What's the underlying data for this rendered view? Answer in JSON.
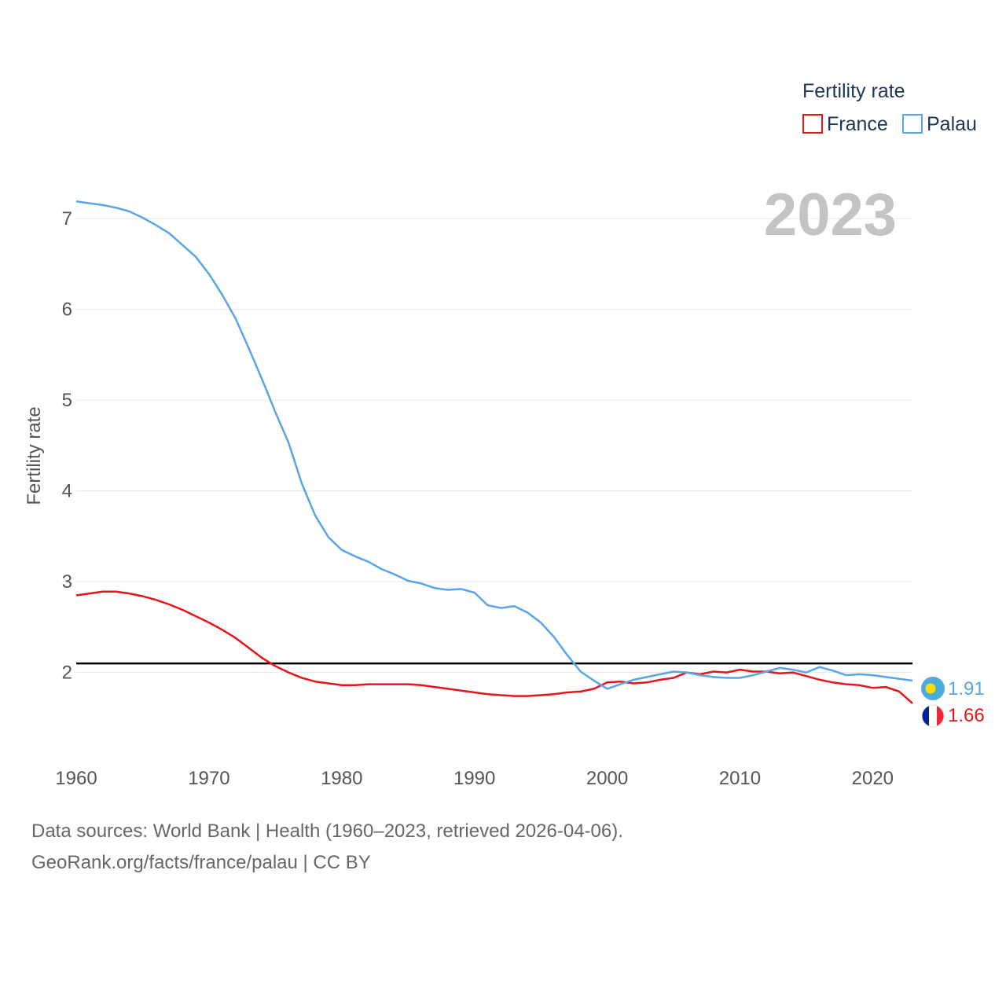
{
  "chart_data": {
    "type": "line",
    "title": "",
    "xlabel": "",
    "ylabel": "Fertility rate",
    "xlim": [
      1960,
      2023
    ],
    "ylim": [
      1.2,
      7.4
    ],
    "x_ticks": [
      "1960",
      "1970",
      "1980",
      "1990",
      "2000",
      "2010",
      "2020"
    ],
    "y_ticks": [
      "2",
      "3",
      "4",
      "5",
      "6",
      "7"
    ],
    "grid": true,
    "year_label": "2023",
    "reference_line": {
      "value": 2.1,
      "label": ""
    },
    "legend": {
      "title": "Fertility rate",
      "position": "top-right"
    },
    "x": [
      1960,
      1961,
      1962,
      1963,
      1964,
      1965,
      1966,
      1967,
      1968,
      1969,
      1970,
      1971,
      1972,
      1973,
      1974,
      1975,
      1976,
      1977,
      1978,
      1979,
      1980,
      1981,
      1982,
      1983,
      1984,
      1985,
      1986,
      1987,
      1988,
      1989,
      1990,
      1991,
      1992,
      1993,
      1994,
      1995,
      1996,
      1997,
      1998,
      1999,
      2000,
      2001,
      2002,
      2003,
      2004,
      2005,
      2006,
      2007,
      2008,
      2009,
      2010,
      2011,
      2012,
      2013,
      2014,
      2015,
      2016,
      2017,
      2018,
      2019,
      2020,
      2021,
      2022,
      2023
    ],
    "series": [
      {
        "name": "France",
        "color": "#e8141b",
        "end_label": "1.66",
        "values": [
          2.85,
          2.87,
          2.89,
          2.89,
          2.87,
          2.84,
          2.8,
          2.75,
          2.69,
          2.62,
          2.55,
          2.47,
          2.38,
          2.27,
          2.16,
          2.07,
          2.0,
          1.94,
          1.9,
          1.88,
          1.86,
          1.86,
          1.87,
          1.87,
          1.87,
          1.87,
          1.86,
          1.84,
          1.82,
          1.8,
          1.78,
          1.76,
          1.75,
          1.74,
          1.74,
          1.75,
          1.76,
          1.78,
          1.79,
          1.82,
          1.89,
          1.9,
          1.88,
          1.89,
          1.92,
          1.94,
          2.0,
          1.98,
          2.01,
          2.0,
          2.03,
          2.01,
          2.01,
          1.99,
          2.0,
          1.96,
          1.92,
          1.89,
          1.87,
          1.86,
          1.83,
          1.84,
          1.79,
          1.66
        ]
      },
      {
        "name": "Palau",
        "color": "#5aa4e8",
        "end_label": "1.91",
        "values": [
          7.19,
          7.17,
          7.15,
          7.12,
          7.08,
          7.01,
          6.93,
          6.84,
          6.71,
          6.58,
          6.39,
          6.16,
          5.9,
          5.57,
          5.23,
          4.87,
          4.53,
          4.08,
          3.73,
          3.49,
          3.35,
          3.28,
          3.22,
          3.14,
          3.08,
          3.01,
          2.98,
          2.93,
          2.91,
          2.92,
          2.88,
          2.74,
          2.71,
          2.73,
          2.66,
          2.55,
          2.39,
          2.19,
          2.01,
          1.91,
          1.82,
          1.87,
          1.92,
          1.95,
          1.98,
          2.01,
          2.0,
          1.97,
          1.95,
          1.94,
          1.94,
          1.97,
          2.01,
          2.05,
          2.03,
          2.0,
          2.06,
          2.02,
          1.97,
          1.98,
          1.97,
          1.95,
          1.93,
          1.91
        ]
      }
    ]
  },
  "footer": {
    "sources": "Data sources: World Bank | Health (1960–2023, retrieved 2026-04-06).",
    "credit": "GeoRank.org/facts/france/palau | CC BY"
  }
}
